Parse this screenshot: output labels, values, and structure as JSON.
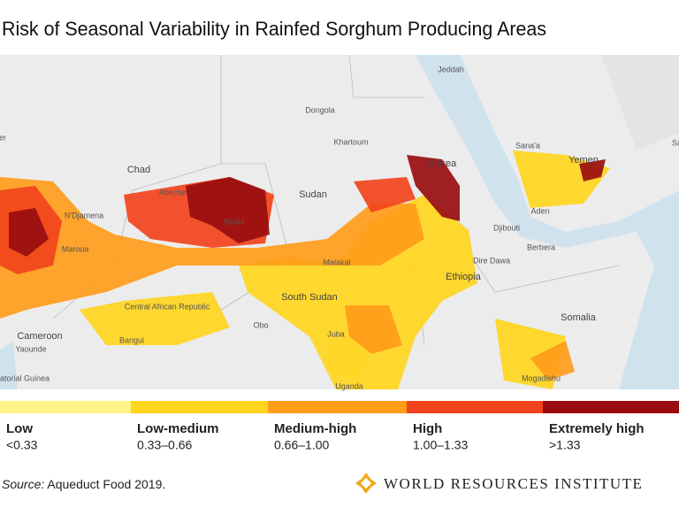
{
  "title": "Risk of Seasonal Variability in Rainfed Sorghum Producing Areas",
  "map": {
    "labels": [
      "Jeddah",
      "Dongola",
      "Chad",
      "Khartoum",
      "Eritrea",
      "Sana'a",
      "Yemen",
      "Sudan",
      "N'Djamena",
      "Abeche",
      "Nyala",
      "Djibouti",
      "Maroua",
      "Aden",
      "Berbera",
      "Malakal",
      "Dire Dawa",
      "Ethiopia",
      "South Sudan",
      "Central African Republic",
      "Obo",
      "Somalia",
      "Cameroon",
      "Bangui",
      "Yaounde",
      "Juba",
      "Mogadishu",
      "Equatorial Guinea",
      "Uganda",
      "ger",
      "Sala"
    ]
  },
  "legend": {
    "items": [
      {
        "label": "Low",
        "range": "<0.33",
        "color": "#fff48a"
      },
      {
        "label": "Low-medium",
        "range": "0.33–0.66",
        "color": "#ffd51e"
      },
      {
        "label": "Medium-high",
        "range": "0.66–1.00",
        "color": "#ff9c1a"
      },
      {
        "label": "High",
        "range": "1.00–1.33",
        "color": "#f1441c"
      },
      {
        "label": "Extremely high",
        "range": ">1.33",
        "color": "#990d10"
      }
    ]
  },
  "source": {
    "prefix": "Source:",
    "text": " Aqueduct Food 2019."
  },
  "logo": "WORLD RESOURCES INSTITUTE"
}
